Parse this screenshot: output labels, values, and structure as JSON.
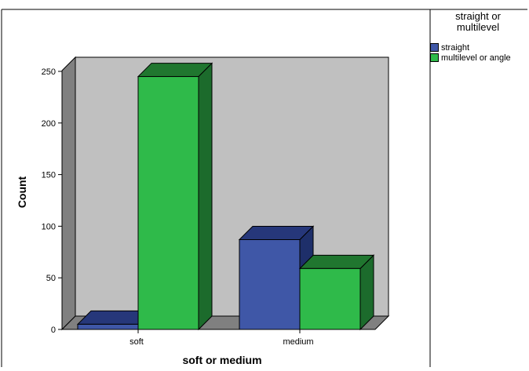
{
  "chart_data": {
    "type": "bar",
    "style": "3d-clustered",
    "categories": [
      "soft",
      "medium"
    ],
    "series": [
      {
        "name": "straight",
        "values": [
          5,
          87
        ],
        "color": "#3f57a7",
        "side_color": "#1e2f6a",
        "top_color": "#26377a"
      },
      {
        "name": "multilevel or angle",
        "values": [
          245,
          59
        ],
        "color": "#2fba4a",
        "side_color": "#1c6b2c",
        "top_color": "#20762f"
      }
    ],
    "xlabel": "soft or medium",
    "ylabel": "Count",
    "ylim": [
      0,
      250
    ],
    "yticks": [
      0,
      50,
      100,
      150,
      200,
      250
    ],
    "grid": false,
    "legend_position": "right",
    "wall_color": "#c0c0c0",
    "side_wall_color": "#808080"
  },
  "legend": {
    "title": "straight or multilevel",
    "items": [
      {
        "label": "straight"
      },
      {
        "label": "multilevel or angle"
      }
    ]
  }
}
